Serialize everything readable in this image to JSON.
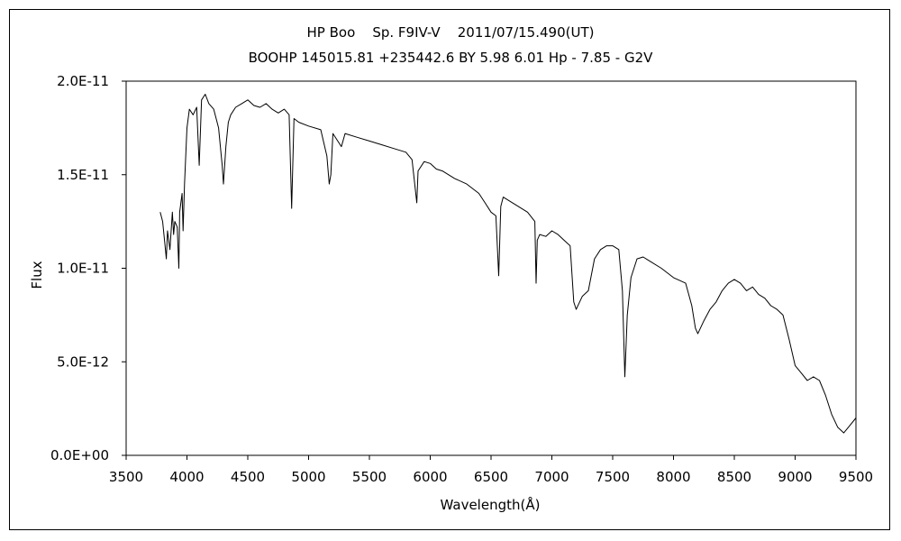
{
  "chart_data": {
    "type": "line",
    "title": "HP Boo    Sp. F9IV-V    2011/07/15.490(UT)",
    "subtitle": "BOOHP 145015.81 +235442.6 BY 5.98 6.01 Hp - 7.85 - G2V",
    "xlabel": "Wavelength(Å)",
    "ylabel": "Flux",
    "xlim": [
      3500,
      9500
    ],
    "ylim": [
      0,
      2e-11
    ],
    "x_ticks": [
      "3500",
      "4000",
      "4500",
      "5000",
      "5500",
      "6000",
      "6500",
      "7000",
      "7500",
      "8000",
      "8500",
      "9000",
      "9500"
    ],
    "y_ticks": [
      "0.0E+00",
      "5.0E-12",
      "1.0E-11",
      "1.5E-11",
      "2.0E-11"
    ],
    "grid": false,
    "legend": "none",
    "series": [
      {
        "x": [
          3780,
          3800,
          3820,
          3830,
          3840,
          3860,
          3880,
          3890,
          3900,
          3920,
          3933,
          3940,
          3960,
          3968,
          3980,
          4000,
          4020,
          4050,
          4080,
          4101,
          4120,
          4150,
          4180,
          4220,
          4260,
          4290,
          4300,
          4320,
          4340,
          4360,
          4400,
          4450,
          4500,
          4550,
          4600,
          4650,
          4700,
          4750,
          4800,
          4840,
          4861,
          4880,
          4920,
          5000,
          5100,
          5150,
          5170,
          5183,
          5200,
          5270,
          5300,
          5400,
          5500,
          5600,
          5700,
          5800,
          5850,
          5890,
          5900,
          5950,
          6000,
          6050,
          6100,
          6200,
          6300,
          6400,
          6450,
          6500,
          6540,
          6563,
          6580,
          6600,
          6650,
          6700,
          6800,
          6860,
          6870,
          6880,
          6900,
          6950,
          7000,
          7050,
          7100,
          7150,
          7180,
          7200,
          7250,
          7300,
          7350,
          7400,
          7450,
          7500,
          7550,
          7580,
          7600,
          7620,
          7650,
          7700,
          7750,
          7800,
          7900,
          8000,
          8100,
          8150,
          8180,
          8200,
          8250,
          8300,
          8350,
          8400,
          8450,
          8500,
          8550,
          8600,
          8650,
          8700,
          8750,
          8800,
          8850,
          8900,
          8950,
          9000,
          9050,
          9100,
          9150,
          9200,
          9250,
          9300,
          9350,
          9400,
          9450,
          9500
        ],
        "y": [
          1.3e-11,
          1.25e-11,
          1.12e-11,
          1.05e-11,
          1.2e-11,
          1.1e-11,
          1.3e-11,
          1.18e-11,
          1.25e-11,
          1.22e-11,
          1e-11,
          1.3e-11,
          1.4e-11,
          1.2e-11,
          1.45e-11,
          1.75e-11,
          1.85e-11,
          1.82e-11,
          1.86e-11,
          1.55e-11,
          1.9e-11,
          1.93e-11,
          1.88e-11,
          1.85e-11,
          1.75e-11,
          1.55e-11,
          1.45e-11,
          1.65e-11,
          1.78e-11,
          1.82e-11,
          1.86e-11,
          1.88e-11,
          1.9e-11,
          1.87e-11,
          1.86e-11,
          1.88e-11,
          1.85e-11,
          1.83e-11,
          1.85e-11,
          1.82e-11,
          1.32e-11,
          1.8e-11,
          1.78e-11,
          1.76e-11,
          1.74e-11,
          1.6e-11,
          1.45e-11,
          1.5e-11,
          1.72e-11,
          1.65e-11,
          1.72e-11,
          1.7e-11,
          1.68e-11,
          1.66e-11,
          1.64e-11,
          1.62e-11,
          1.58e-11,
          1.35e-11,
          1.52e-11,
          1.57e-11,
          1.56e-11,
          1.53e-11,
          1.52e-11,
          1.48e-11,
          1.45e-11,
          1.4e-11,
          1.35e-11,
          1.3e-11,
          1.28e-11,
          9.6e-12,
          1.33e-11,
          1.38e-11,
          1.36e-11,
          1.34e-11,
          1.3e-11,
          1.25e-11,
          9.2e-12,
          1.15e-11,
          1.18e-11,
          1.17e-11,
          1.2e-11,
          1.18e-11,
          1.15e-11,
          1.12e-11,
          8.2e-12,
          7.8e-12,
          8.5e-12,
          8.8e-12,
          1.05e-11,
          1.1e-11,
          1.12e-11,
          1.12e-11,
          1.1e-11,
          8.8e-12,
          4.2e-12,
          7.5e-12,
          9.5e-12,
          1.05e-11,
          1.06e-11,
          1.04e-11,
          1e-11,
          9.5e-12,
          9.2e-12,
          8e-12,
          6.8e-12,
          6.5e-12,
          7.2e-12,
          7.8e-12,
          8.2e-12,
          8.8e-12,
          9.2e-12,
          9.4e-12,
          9.2e-12,
          8.8e-12,
          9e-12,
          8.6e-12,
          8.4e-12,
          8e-12,
          7.8e-12,
          7.5e-12,
          6.2e-12,
          4.8e-12,
          4.4e-12,
          4e-12,
          4.2e-12,
          4e-12,
          3.2e-12,
          2.2e-12,
          1.5e-12,
          1.2e-12,
          1.6e-12,
          2e-12
        ]
      }
    ]
  }
}
